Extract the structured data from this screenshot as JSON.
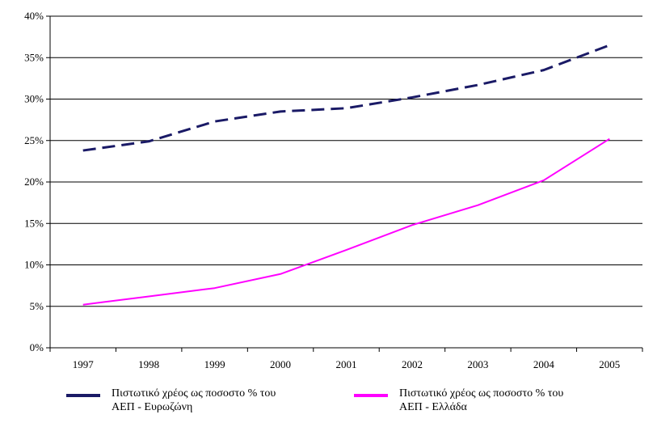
{
  "chart_data": {
    "type": "line",
    "title": "",
    "xlabel": "",
    "ylabel": "",
    "categories": [
      "1997",
      "1998",
      "1999",
      "2000",
      "2001",
      "2002",
      "2003",
      "2004",
      "2005"
    ],
    "y_tick_labels": [
      "0%",
      "5%",
      "10%",
      "15%",
      "20%",
      "25%",
      "30%",
      "35%",
      "40%"
    ],
    "ylim": [
      0,
      40
    ],
    "grid": true,
    "legend_position": "bottom",
    "series": [
      {
        "name": "Πιστωτικό χρέος ως ποσοστο % του\nΑΕΠ - Ευρωζώνη",
        "values": [
          23.8,
          24.9,
          27.3,
          28.5,
          28.9,
          30.2,
          31.7,
          33.5,
          36.5
        ],
        "color": "#1a1a66",
        "style": "dashed"
      },
      {
        "name": "Πιστωτικό χρέος ως ποσοστο % του\nΑΕΠ - Ελλάδα",
        "values": [
          5.2,
          6.2,
          7.2,
          8.9,
          11.8,
          14.8,
          17.2,
          20.2,
          25.2
        ],
        "color": "#ff00ff",
        "style": "solid"
      }
    ]
  }
}
